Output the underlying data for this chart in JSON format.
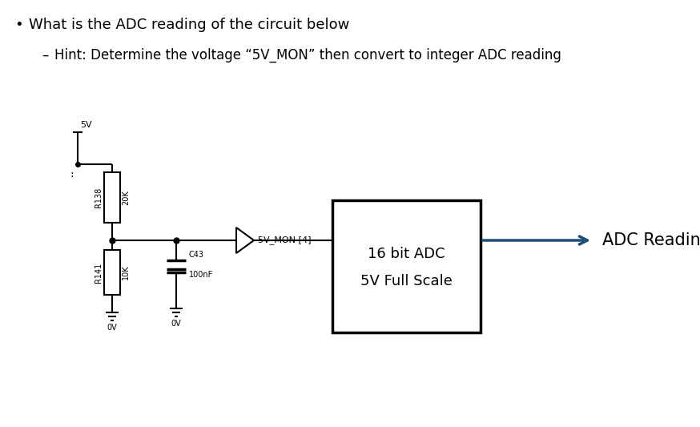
{
  "title_bullet": "What is the ADC reading of the circuit below",
  "hint_dash": "–",
  "hint_text": "Hint: Determine the voltage “5V_MON” then convert to integer ADC reading",
  "bg_color": "#ffffff",
  "text_color": "#000000",
  "circuit": {
    "supply_label": "5V",
    "gnd_label1": "0V",
    "gnd_label2": "0V",
    "r138_label": "R138",
    "r138_val": "20K",
    "r141_label": "R141",
    "r141_val": "10K",
    "c43_label": "C43",
    "c43_val": "100nF",
    "net_label": "5V_MON [4]",
    "adc_line1": "16 bit ADC",
    "adc_line2": "5V Full Scale",
    "arrow_label": "ADC Reading",
    "arrow_color": "#1f4e79",
    "underline_color": "#4472c4"
  }
}
